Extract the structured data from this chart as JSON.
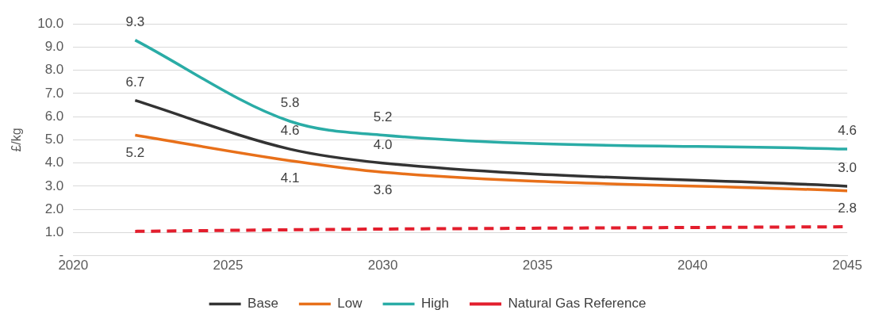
{
  "chart_data": {
    "type": "line",
    "ylabel": "£/kg",
    "x": [
      2022,
      2027,
      2030,
      2045
    ],
    "series": [
      {
        "name": "Base",
        "color": "#333333",
        "values": [
          6.7,
          4.6,
          4.0,
          3.0
        ],
        "value_labels": [
          "6.7",
          "4.6",
          "4.0",
          "3.0"
        ],
        "line_style": "solid"
      },
      {
        "name": "Low",
        "color": "#e8701a",
        "values": [
          5.2,
          4.1,
          3.6,
          2.8
        ],
        "value_labels": [
          "5.2",
          "4.1",
          "3.6",
          "2.8"
        ],
        "line_style": "solid"
      },
      {
        "name": "High",
        "color": "#2aaca6",
        "values": [
          9.3,
          5.8,
          5.2,
          4.6
        ],
        "value_labels": [
          "9.3",
          "5.8",
          "5.2",
          "4.6"
        ],
        "line_style": "solid"
      },
      {
        "name": "Natural Gas Reference",
        "color": "#e31e2d",
        "values": [
          1.05,
          1.12,
          1.15,
          1.25
        ],
        "line_style": "dashed"
      }
    ],
    "xlim": [
      2020,
      2045
    ],
    "xticks": [
      2020,
      2025,
      2030,
      2035,
      2040,
      2045
    ],
    "ylim": [
      0,
      10
    ],
    "yticks": [
      {
        "value": 0,
        "label": "-"
      },
      {
        "value": 1,
        "label": "1.0"
      },
      {
        "value": 2,
        "label": "2.0"
      },
      {
        "value": 3,
        "label": "3.0"
      },
      {
        "value": 4,
        "label": "4.0"
      },
      {
        "value": 5,
        "label": "5.0"
      },
      {
        "value": 6,
        "label": "6.0"
      },
      {
        "value": 7,
        "label": "7.0"
      },
      {
        "value": 8,
        "label": "8.0"
      },
      {
        "value": 9,
        "label": "9.0"
      },
      {
        "value": 10,
        "label": "10.0"
      }
    ],
    "grid": "y",
    "legend": "bottom",
    "marker": "none"
  }
}
